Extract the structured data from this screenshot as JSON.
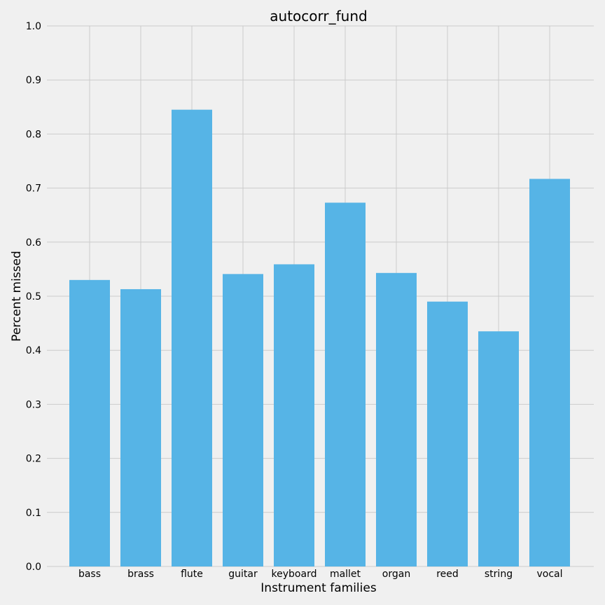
{
  "chart_data": {
    "type": "bar",
    "title": "autocorr_fund",
    "xlabel": "Instrument families",
    "ylabel": "Percent missed",
    "categories": [
      "bass",
      "brass",
      "flute",
      "guitar",
      "keyboard",
      "mallet",
      "organ",
      "reed",
      "string",
      "vocal"
    ],
    "values": [
      0.53,
      0.513,
      0.845,
      0.541,
      0.559,
      0.673,
      0.543,
      0.49,
      0.435,
      0.717
    ],
    "ylim": [
      0,
      1.0
    ],
    "yticks": [
      "0.0",
      "0.1",
      "0.2",
      "0.3",
      "0.4",
      "0.5",
      "0.6",
      "0.7",
      "0.8",
      "0.9",
      "1.0"
    ],
    "grid": true,
    "bar_color": "#56b4e6",
    "background_color": "#f0f0f0",
    "grid_color": "#cbcbcb"
  }
}
